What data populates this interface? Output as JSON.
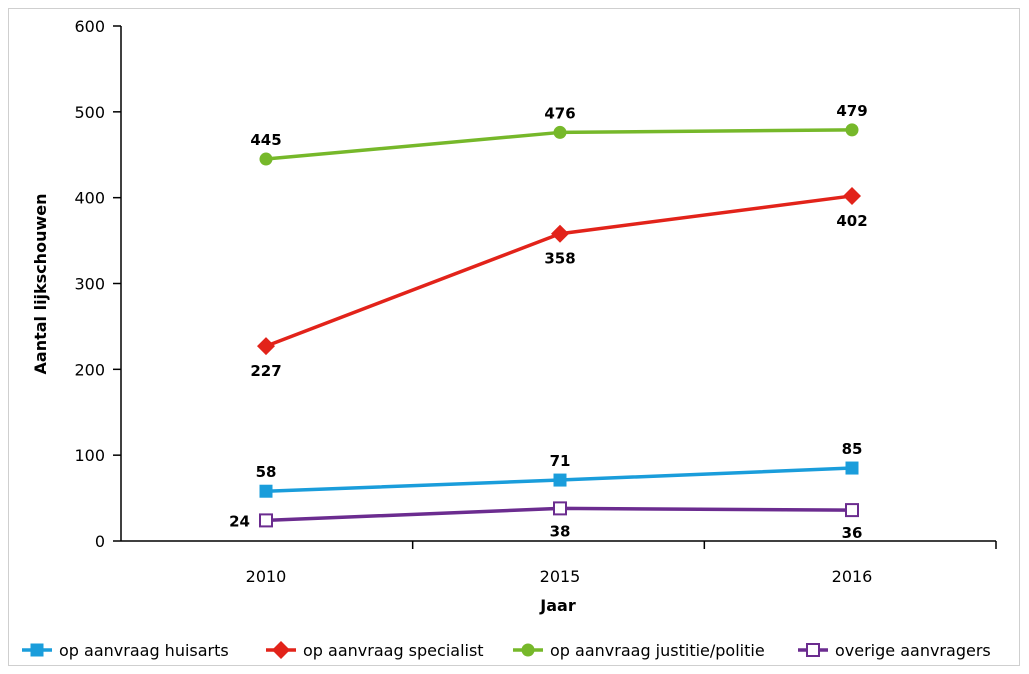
{
  "chart_data": {
    "type": "line",
    "title": "",
    "xlabel": "Jaar",
    "ylabel": "Aantal lijkschouwen",
    "categories": [
      "2010",
      "2015",
      "2016"
    ],
    "ylim": [
      0,
      600
    ],
    "yticks": [
      0,
      100,
      200,
      300,
      400,
      500,
      600
    ],
    "grid": false,
    "legend_position": "bottom",
    "series": [
      {
        "name": "op aanvraag huisarts",
        "values": [
          58,
          71,
          85
        ],
        "color": "#1a9ddb",
        "marker": "square",
        "labels": [
          "58",
          "71",
          "85"
        ],
        "label_side": "above"
      },
      {
        "name": "op aanvraag specialist",
        "values": [
          227,
          358,
          402
        ],
        "color": "#e2231a",
        "marker": "diamond",
        "labels": [
          "227",
          "358",
          "402"
        ],
        "label_side": "below"
      },
      {
        "name": "op aanvraag justitie/politie",
        "values": [
          445,
          476,
          479
        ],
        "color": "#76b82a",
        "marker": "circle",
        "labels": [
          "445",
          "476",
          "479"
        ],
        "label_side": "above"
      },
      {
        "name": "overige aanvragers",
        "values": [
          24,
          38,
          36
        ],
        "color": "#6b2c8f",
        "marker": "square-open",
        "labels": [
          "24",
          "38",
          "36"
        ],
        "label_side": "mixed"
      }
    ]
  }
}
